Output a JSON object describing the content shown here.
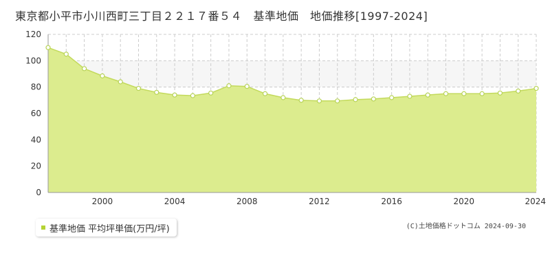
{
  "title": "東京都小平市小川西町三丁目２２１７番５４　基準地価　地価推移[1997-2024]",
  "legend": {
    "label": "基準地価 平均坪単価(万円/坪)"
  },
  "copyright": "(C)土地価格ドットコム 2024-09-30",
  "colors": {
    "fill": "#dcec8e",
    "line": "#c3da5c",
    "point_fill": "#ffffff",
    "point_stroke": "#b7d356",
    "band": "#f6f6f6",
    "grid": "#cccccc",
    "legend_marker": "#b5d334"
  },
  "chart_data": {
    "type": "area",
    "x": [
      1997,
      1998,
      1999,
      2000,
      2001,
      2002,
      2003,
      2004,
      2005,
      2006,
      2007,
      2008,
      2009,
      2010,
      2011,
      2012,
      2013,
      2014,
      2015,
      2016,
      2017,
      2018,
      2019,
      2020,
      2021,
      2022,
      2023,
      2024
    ],
    "series": [
      {
        "name": "基準地価 平均坪単価(万円/坪)",
        "values": [
          110,
          105,
          94,
          88.5,
          84,
          79,
          76,
          74,
          73.5,
          75.5,
          81,
          80.5,
          75,
          72,
          70,
          69.5,
          69.5,
          70.5,
          71,
          72,
          73,
          74,
          75,
          75,
          75,
          75.5,
          77,
          79
        ]
      }
    ],
    "xticks": [
      "2000",
      "2004",
      "2008",
      "2012",
      "2016",
      "2020",
      "2024"
    ],
    "xtick_values": [
      2000,
      2004,
      2008,
      2012,
      2016,
      2020,
      2024
    ],
    "yticks": [
      "0",
      "20",
      "40",
      "60",
      "80",
      "100",
      "120"
    ],
    "ytick_values": [
      0,
      20,
      40,
      60,
      80,
      100,
      120
    ],
    "xlim": [
      1997,
      2024
    ],
    "ylim": [
      0,
      120
    ],
    "band": [
      80,
      100
    ],
    "grid": true,
    "legend_position": "bottom-left"
  }
}
